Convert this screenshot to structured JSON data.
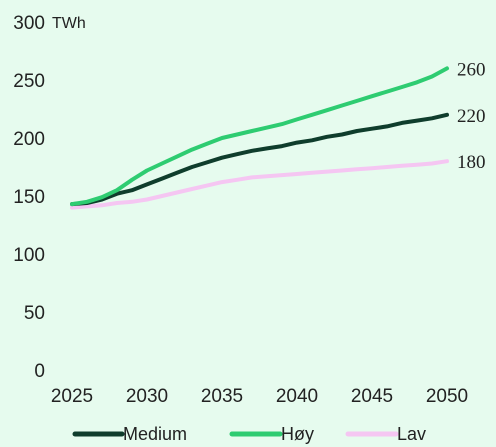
{
  "chart_data": {
    "type": "line",
    "unit_label": "TWh",
    "x": [
      2025,
      2026,
      2027,
      2028,
      2029,
      2030,
      2031,
      2032,
      2033,
      2034,
      2035,
      2036,
      2037,
      2038,
      2039,
      2040,
      2041,
      2042,
      2043,
      2044,
      2045,
      2046,
      2047,
      2048,
      2049,
      2050
    ],
    "xticks": [
      2025,
      2030,
      2035,
      2040,
      2045,
      2050
    ],
    "yticks": [
      0,
      50,
      100,
      150,
      200,
      250,
      300
    ],
    "xlim": [
      2025,
      2050
    ],
    "ylim": [
      0,
      300
    ],
    "grid": false,
    "legend_position": "bottom",
    "series": [
      {
        "name": "Medium",
        "color": "#0f3d2c",
        "end_label": "220",
        "values": [
          143,
          144,
          147,
          152,
          155,
          160,
          165,
          170,
          175,
          179,
          183,
          186,
          189,
          191,
          193,
          196,
          198,
          201,
          203,
          206,
          208,
          210,
          213,
          215,
          217,
          220
        ]
      },
      {
        "name": "Høy",
        "color": "#2ecc71",
        "end_label": "260",
        "values": [
          143,
          145,
          149,
          155,
          164,
          172,
          178,
          184,
          190,
          195,
          200,
          203,
          206,
          209,
          212,
          216,
          220,
          224,
          228,
          232,
          236,
          240,
          244,
          248,
          253,
          260
        ]
      },
      {
        "name": "Lav",
        "color": "#f5c6f2",
        "end_label": "180",
        "values": [
          140,
          141,
          142,
          144,
          145,
          147,
          150,
          153,
          156,
          159,
          162,
          164,
          166,
          167,
          168,
          169,
          170,
          171,
          172,
          173,
          174,
          175,
          176,
          177,
          178,
          180
        ]
      }
    ]
  }
}
